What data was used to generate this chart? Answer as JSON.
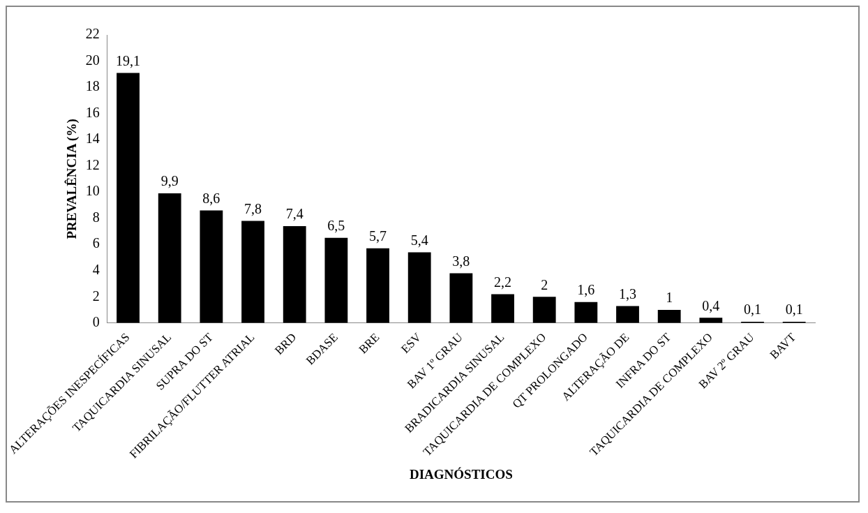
{
  "chart_data": {
    "type": "bar",
    "xlabel": "DIAGNÓSTICOS",
    "ylabel": "PREVALÊNCIA (%)",
    "categories": [
      "ALTERAÇÕES INESPECÍFICAS",
      "TAQUICARDIA SINUSAL",
      "SUPRA DO ST",
      "FIBRILAÇÃO/FLUTTER ATRIAL",
      "BRD",
      "BDASE",
      "BRE",
      "ESV",
      "BAV 1º GRAU",
      "BRADICARDIA SINUSAL",
      "TAQUICARDIA DE COMPLEXO",
      "QT PROLONGADO",
      "ALTERAÇÃO DE",
      "INFRA DO ST",
      "TAQUICARDIA DE COMPLEXO",
      "BAV 2º GRAU",
      "BAVT"
    ],
    "values": [
      19.1,
      9.9,
      8.6,
      7.8,
      7.4,
      6.5,
      5.7,
      5.4,
      3.8,
      2.2,
      2,
      1.6,
      1.3,
      1,
      0.4,
      0.1,
      0.1
    ],
    "value_labels": [
      "19,1",
      "9,9",
      "8,6",
      "7,8",
      "7,4",
      "6,5",
      "5,7",
      "5,4",
      "3,8",
      "2,2",
      "2",
      "1,6",
      "1,3",
      "1",
      "0,4",
      "0,1",
      "0,1"
    ],
    "color": "#000000",
    "ylim": [
      0,
      22
    ],
    "yticks": [
      0,
      2,
      4,
      6,
      8,
      10,
      12,
      14,
      16,
      18,
      20,
      22
    ],
    "grid": false,
    "legend": false
  }
}
